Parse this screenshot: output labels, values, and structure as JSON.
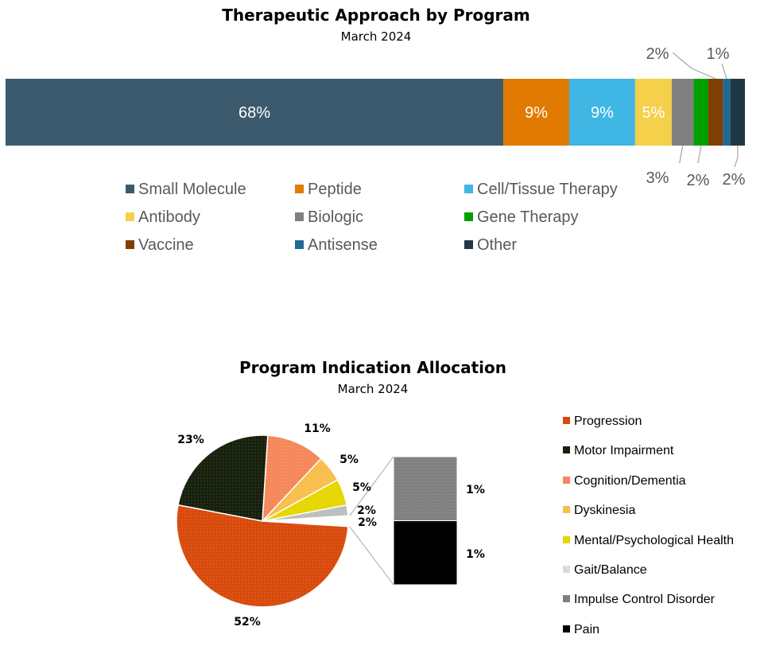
{
  "chart_data": [
    {
      "type": "stacked-bar-100",
      "title": "Therapeutic Approach by Program",
      "subtitle": "March 2024",
      "categories": [
        "Small Molecule",
        "Peptide",
        "Cell/Tissue Therapy",
        "Antibody",
        "Biologic",
        "Gene Therapy",
        "Vaccine",
        "Antisense",
        "Other"
      ],
      "values": [
        68,
        9,
        9,
        5,
        3,
        2,
        2,
        1,
        2
      ],
      "labels": [
        "68%",
        "9%",
        "9%",
        "5%",
        "3%",
        "2%",
        "2%",
        "1%",
        "2%"
      ],
      "colors": [
        "#3C5A6E",
        "#E07A00",
        "#3FB6E4",
        "#F5D04A",
        "#808080",
        "#00A000",
        "#7F3F00",
        "#1F6A93",
        "#203846"
      ],
      "legend": "bottom"
    },
    {
      "type": "pie-of-pie",
      "title": "Program Indication Allocation",
      "subtitle": "March 2024",
      "categories": [
        "Progression",
        "Motor Impairment",
        "Cognition/Dementia",
        "Dyskinesia",
        "Mental/Psychological Health",
        "Gait/Balance",
        "Impulse Control Disorder",
        "Pain"
      ],
      "values": [
        52,
        23,
        11,
        5,
        5,
        2,
        1,
        1
      ],
      "labels": [
        "52%",
        "23%",
        "11%",
        "5%",
        "5%",
        "2%",
        "1%",
        "1%"
      ],
      "other_label": "2%",
      "colors": [
        "#D84A0C",
        "#17200D",
        "#F5875A",
        "#F7BE4C",
        "#E6D600",
        "#BDBDBD",
        "#808080",
        "#000000"
      ],
      "secondary": [
        "Impulse Control Disorder",
        "Pain"
      ],
      "legend": "right"
    }
  ]
}
